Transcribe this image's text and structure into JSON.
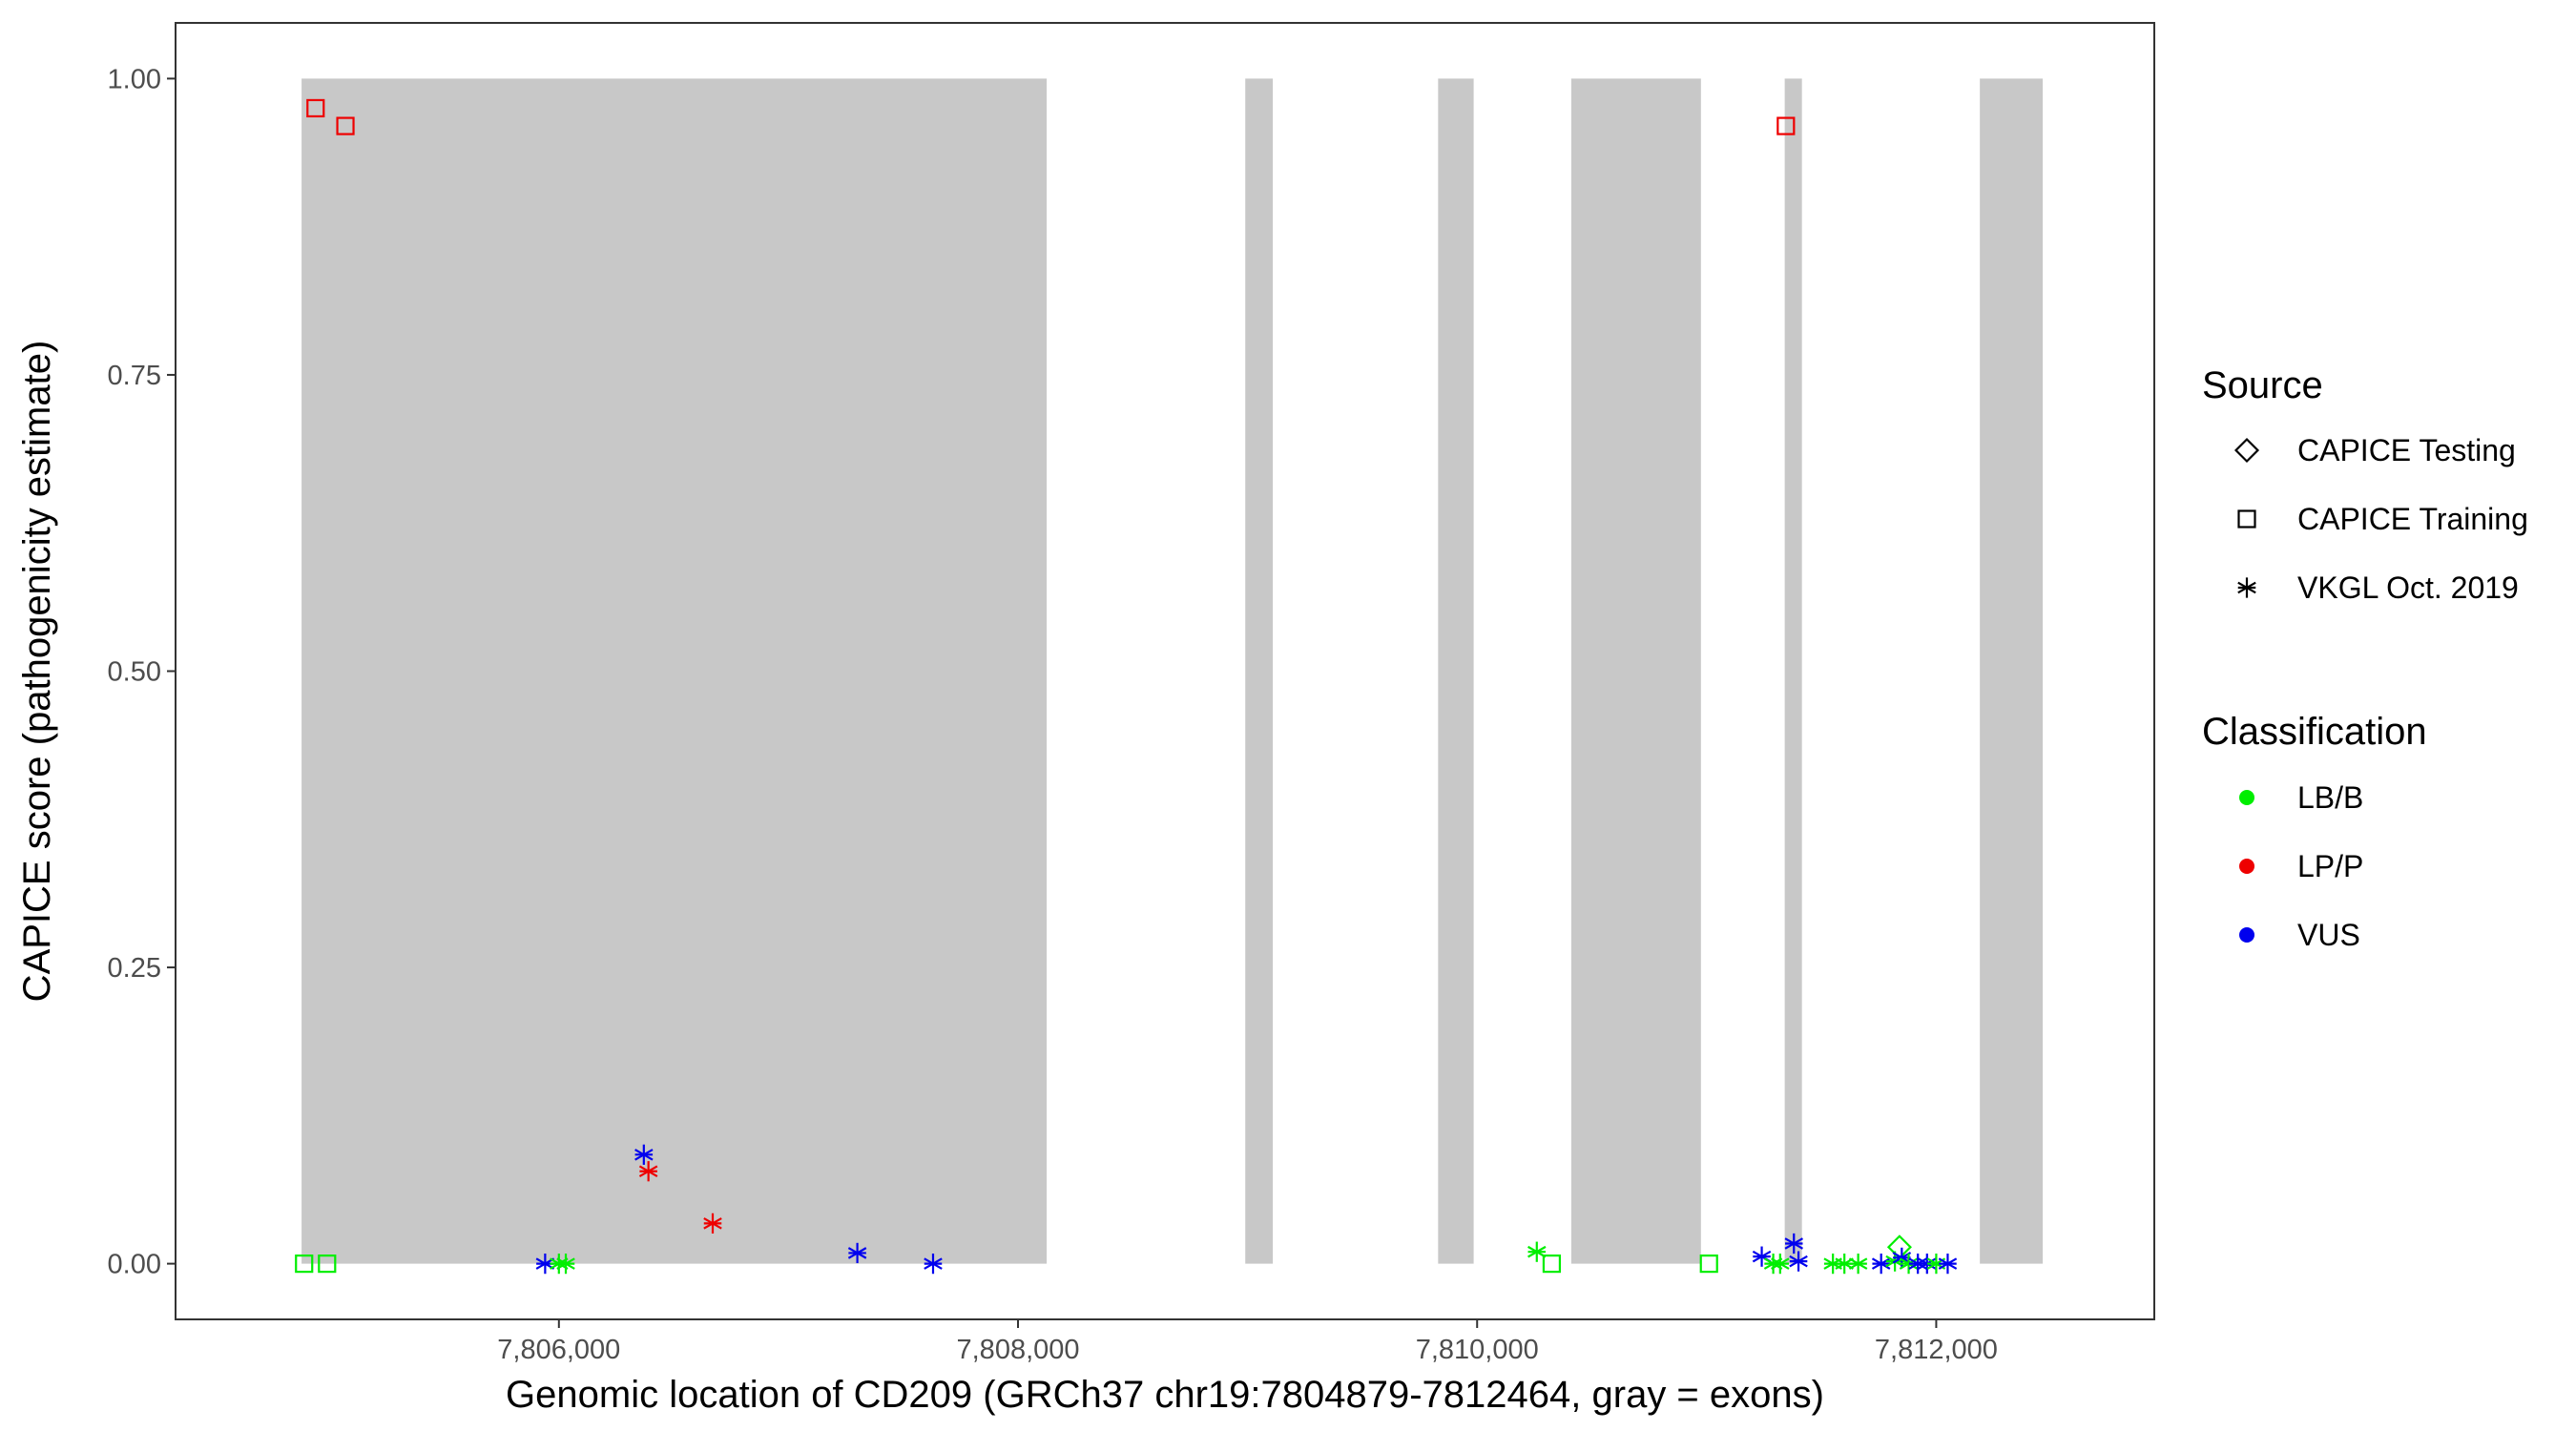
{
  "chart_data": {
    "type": "scatter",
    "xlabel": "Genomic location of CD209 (GRCh37 chr19:7804879-7812464, gray = exons)",
    "ylabel": "CAPICE score (pathogenicity estimate)",
    "xlim": [
      7804330,
      7812950
    ],
    "ylim": [
      -0.047,
      1.047
    ],
    "x_ticks": [
      7806000,
      7808000,
      7810000,
      7812000
    ],
    "x_tick_labels": [
      "7,806,000",
      "7,808,000",
      "7,810,000",
      "7,812,000"
    ],
    "y_ticks": [
      0,
      0.25,
      0.5,
      0.75,
      1.0
    ],
    "y_tick_labels": [
      "0.00",
      "0.25",
      "0.50",
      "0.75",
      "1.00"
    ],
    "grid": false,
    "exon_color": "#c8c8c8",
    "exons": [
      {
        "start": 7804879,
        "end": 7808125
      },
      {
        "start": 7808990,
        "end": 7809110
      },
      {
        "start": 7809830,
        "end": 7809985
      },
      {
        "start": 7810410,
        "end": 7810975
      },
      {
        "start": 7811340,
        "end": 7811415
      },
      {
        "start": 7812190,
        "end": 7812464
      }
    ],
    "legend": {
      "position": "right",
      "source_title": "Source",
      "source_items": [
        {
          "label": "CAPICE Testing",
          "shape": "diamond"
        },
        {
          "label": "CAPICE Training",
          "shape": "square"
        },
        {
          "label": "VKGL Oct. 2019",
          "shape": "asterisk"
        }
      ],
      "class_title": "Classification",
      "class_items": [
        {
          "label": "LB/B",
          "color": "#00ee00"
        },
        {
          "label": "LP/P",
          "color": "#ee0000"
        },
        {
          "label": "VUS",
          "color": "#0000ee"
        }
      ]
    },
    "points": [
      {
        "x": 7804940,
        "y": 0.975,
        "source": "CAPICE Training",
        "class": "LP/P"
      },
      {
        "x": 7805070,
        "y": 0.96,
        "source": "CAPICE Training",
        "class": "LP/P"
      },
      {
        "x": 7811345,
        "y": 0.96,
        "source": "CAPICE Training",
        "class": "LP/P"
      },
      {
        "x": 7804890,
        "y": 0.0,
        "source": "CAPICE Training",
        "class": "LB/B"
      },
      {
        "x": 7804990,
        "y": 0.0,
        "source": "CAPICE Training",
        "class": "LB/B"
      },
      {
        "x": 7810325,
        "y": 0.0,
        "source": "CAPICE Training",
        "class": "LB/B"
      },
      {
        "x": 7811010,
        "y": 0.0,
        "source": "CAPICE Training",
        "class": "LB/B"
      },
      {
        "x": 7811840,
        "y": 0.014,
        "source": "CAPICE Testing",
        "class": "LB/B"
      },
      {
        "x": 7805940,
        "y": 0.0,
        "source": "VKGL Oct. 2019",
        "class": "VUS"
      },
      {
        "x": 7806000,
        "y": 0.0,
        "source": "VKGL Oct. 2019",
        "class": "LB/B"
      },
      {
        "x": 7806030,
        "y": 0.0,
        "source": "VKGL Oct. 2019",
        "class": "LB/B"
      },
      {
        "x": 7806370,
        "y": 0.092,
        "source": "VKGL Oct. 2019",
        "class": "VUS"
      },
      {
        "x": 7806390,
        "y": 0.078,
        "source": "VKGL Oct. 2019",
        "class": "LP/P"
      },
      {
        "x": 7806670,
        "y": 0.034,
        "source": "VKGL Oct. 2019",
        "class": "LP/P"
      },
      {
        "x": 7807300,
        "y": 0.009,
        "source": "VKGL Oct. 2019",
        "class": "VUS"
      },
      {
        "x": 7807630,
        "y": 0.0,
        "source": "VKGL Oct. 2019",
        "class": "VUS"
      },
      {
        "x": 7810260,
        "y": 0.01,
        "source": "VKGL Oct. 2019",
        "class": "LB/B"
      },
      {
        "x": 7811240,
        "y": 0.006,
        "source": "VKGL Oct. 2019",
        "class": "VUS"
      },
      {
        "x": 7811290,
        "y": 0.0,
        "source": "VKGL Oct. 2019",
        "class": "LB/B"
      },
      {
        "x": 7811320,
        "y": 0.0,
        "source": "VKGL Oct. 2019",
        "class": "LB/B"
      },
      {
        "x": 7811380,
        "y": 0.017,
        "source": "VKGL Oct. 2019",
        "class": "VUS"
      },
      {
        "x": 7811400,
        "y": 0.002,
        "source": "VKGL Oct. 2019",
        "class": "VUS"
      },
      {
        "x": 7811550,
        "y": 0.0,
        "source": "VKGL Oct. 2019",
        "class": "LB/B"
      },
      {
        "x": 7811600,
        "y": 0.0,
        "source": "VKGL Oct. 2019",
        "class": "LB/B"
      },
      {
        "x": 7811660,
        "y": 0.0,
        "source": "VKGL Oct. 2019",
        "class": "LB/B"
      },
      {
        "x": 7811760,
        "y": 0.0,
        "source": "VKGL Oct. 2019",
        "class": "VUS"
      },
      {
        "x": 7811820,
        "y": 0.002,
        "source": "VKGL Oct. 2019",
        "class": "LB/B"
      },
      {
        "x": 7811850,
        "y": 0.005,
        "source": "VKGL Oct. 2019",
        "class": "VUS"
      },
      {
        "x": 7811880,
        "y": 0.0,
        "source": "VKGL Oct. 2019",
        "class": "LB/B"
      },
      {
        "x": 7811920,
        "y": 0.0,
        "source": "VKGL Oct. 2019",
        "class": "VUS"
      },
      {
        "x": 7811960,
        "y": 0.0,
        "source": "VKGL Oct. 2019",
        "class": "VUS"
      },
      {
        "x": 7812000,
        "y": 0.0,
        "source": "VKGL Oct. 2019",
        "class": "LB/B"
      },
      {
        "x": 7812050,
        "y": 0.0,
        "source": "VKGL Oct. 2019",
        "class": "VUS"
      }
    ]
  }
}
